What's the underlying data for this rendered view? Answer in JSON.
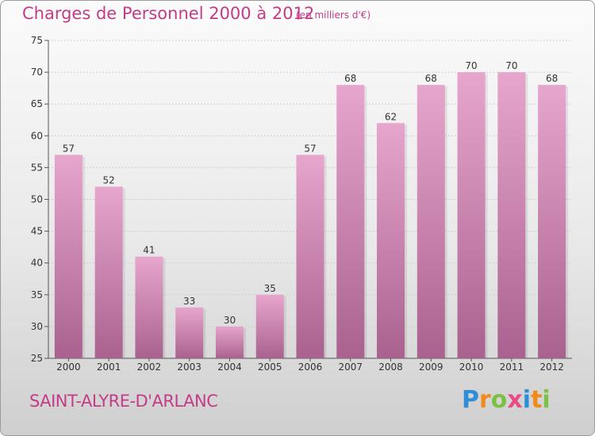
{
  "chart_data": {
    "type": "bar",
    "title": "Charges de Personnel 2000 à 2012",
    "subtitle": "(en milliers d'€)",
    "categories": [
      "2000",
      "2001",
      "2002",
      "2003",
      "2004",
      "2005",
      "2006",
      "2007",
      "2008",
      "2009",
      "2010",
      "2011",
      "2012"
    ],
    "values": [
      57,
      52,
      41,
      33,
      30,
      35,
      57,
      68,
      62,
      68,
      70,
      70,
      68
    ],
    "ylim": [
      25,
      75
    ],
    "yticks": [
      25,
      30,
      35,
      40,
      45,
      50,
      55,
      60,
      65,
      70,
      75
    ],
    "grid": true,
    "bar_color": "#d98fbb"
  },
  "location": "SAINT-ALYRE-D'ARLANC",
  "logo": {
    "letters": [
      {
        "ch": "P",
        "color": "#2f8fd6"
      },
      {
        "ch": "r",
        "color": "#f08a1c"
      },
      {
        "ch": "o",
        "color": "#7cc142"
      },
      {
        "ch": "x",
        "color": "#e84b8a"
      },
      {
        "ch": "i",
        "color": "#2f8fd6"
      },
      {
        "ch": "t",
        "color": "#f08a1c"
      },
      {
        "ch": "i",
        "color": "#7cc142"
      }
    ]
  },
  "colors": {
    "accent": "#c43b88"
  }
}
